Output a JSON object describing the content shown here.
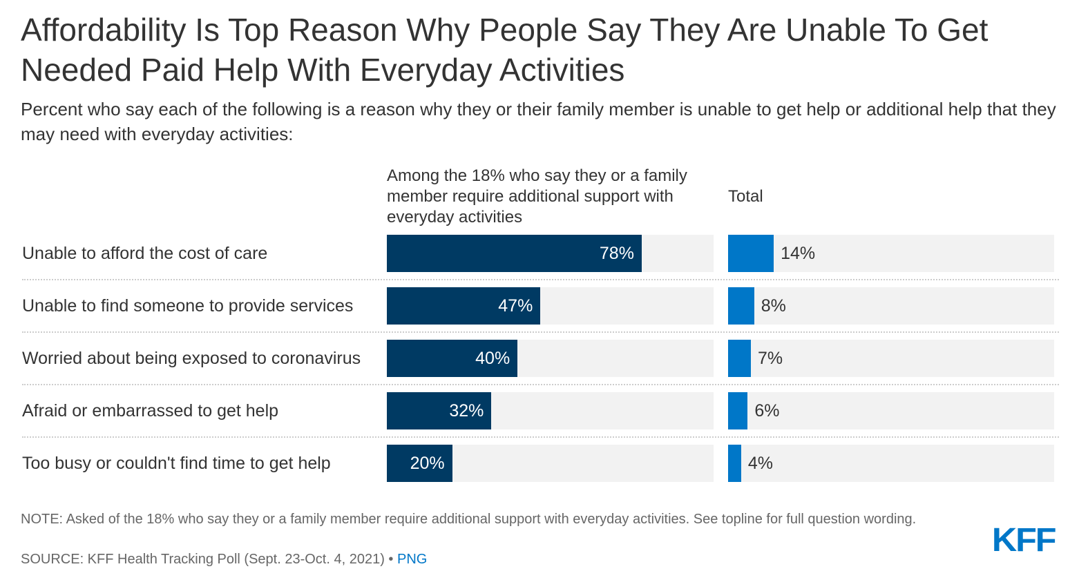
{
  "title": "Affordability Is Top Reason Why People Say They Are Unable To Get Needed Paid Help With Everyday Activities",
  "subtitle": "Percent who say each of the following is a reason why they or their family member is unable to get help or additional help that they may need with everyday activities:",
  "note": "NOTE: Asked of the 18% who say they or a family member require additional support with everyday activities. See topline for full question wording.",
  "source": "SOURCE: KFF Health Tracking Poll (Sept. 23-Oct. 4, 2021) •",
  "png_link": "PNG",
  "logo": "KFF",
  "colors": {
    "series1": "#003a63",
    "series2": "#0077c8",
    "track": "#f2f2f2"
  },
  "chart_data": {
    "type": "bar",
    "orientation": "horizontal",
    "title": "Affordability Is Top Reason Why People Say They Are Unable To Get Needed Paid Help With Everyday Activities",
    "categories": [
      "Unable to afford the cost of care",
      "Unable to find someone to provide services",
      "Worried about being exposed to coronavirus",
      "Afraid or embarrassed to get help",
      "Too busy or couldn't find time to get help"
    ],
    "series": [
      {
        "name": "Among the 18% who say they or a family member require additional support with everyday activities",
        "values": [
          78,
          47,
          40,
          32,
          20
        ],
        "labels": [
          "78%",
          "47%",
          "40%",
          "32%",
          "20%"
        ]
      },
      {
        "name": "Total",
        "values": [
          14,
          8,
          7,
          6,
          4
        ],
        "labels": [
          "14%",
          "8%",
          "7%",
          "6%",
          "4%"
        ]
      }
    ],
    "xlim": [
      0,
      100
    ],
    "unit": "%"
  }
}
